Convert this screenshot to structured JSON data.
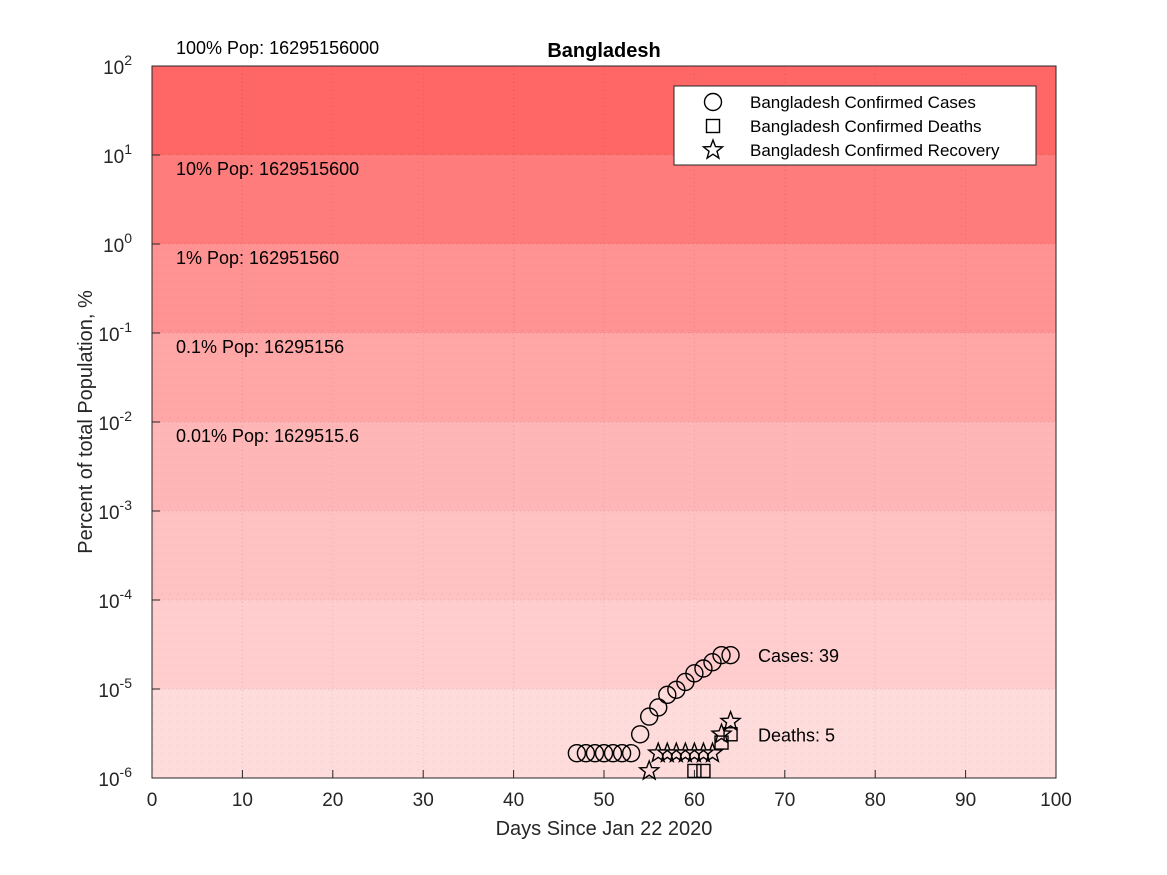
{
  "chart_data": {
    "type": "scatter",
    "title": "Bangladesh",
    "xlabel": "Days Since Jan 22 2020",
    "ylabel": "Percent of total Population, %",
    "xlim": [
      0,
      100
    ],
    "ylim": [
      1e-06,
      100
    ],
    "yscale": "log",
    "x_ticks": [
      0,
      10,
      20,
      30,
      40,
      50,
      60,
      70,
      80,
      90,
      100
    ],
    "x_tick_labels": [
      "0",
      "10",
      "20",
      "30",
      "40",
      "50",
      "60",
      "70",
      "80",
      "90",
      "100"
    ],
    "y_ticks": [
      {
        "value": 1e-06,
        "base": "10",
        "exp": "-6"
      },
      {
        "value": 1e-05,
        "base": "10",
        "exp": "-5"
      },
      {
        "value": 0.0001,
        "base": "10",
        "exp": "-4"
      },
      {
        "value": 0.001,
        "base": "10",
        "exp": "-3"
      },
      {
        "value": 0.01,
        "base": "10",
        "exp": "-2"
      },
      {
        "value": 0.1,
        "base": "10",
        "exp": "-1"
      },
      {
        "value": 1,
        "base": "10",
        "exp": "0"
      },
      {
        "value": 10,
        "base": "10",
        "exp": "1"
      },
      {
        "value": 100,
        "base": "10",
        "exp": "2"
      }
    ],
    "grid": true,
    "legend_position": "top-right",
    "bands": [
      {
        "low": 10,
        "high": 100,
        "color": "#ff6767",
        "label": "100% Pop: 16295156000"
      },
      {
        "low": 1,
        "high": 10,
        "color": "#ff7c7c",
        "label": "10% Pop: 1629515600"
      },
      {
        "low": 0.1,
        "high": 1,
        "color": "#ff9292",
        "label": "1% Pop: 162951560"
      },
      {
        "low": 0.01,
        "high": 0.1,
        "color": "#ffa6a6",
        "label": "0.1% Pop: 16295156"
      },
      {
        "low": 0.001,
        "high": 0.01,
        "color": "#ffb6b6",
        "label": "0.01% Pop: 1629515.6"
      },
      {
        "low": 0.0001,
        "high": 0.001,
        "color": "#ffc2c2",
        "label": ""
      },
      {
        "low": 1e-05,
        "high": 0.0001,
        "color": "#ffcdcd",
        "label": ""
      },
      {
        "low": 1e-06,
        "high": 1e-05,
        "color": "#ffdcdc",
        "label": ""
      }
    ],
    "series": [
      {
        "name": "Bangladesh Confirmed Cases",
        "marker": "circle",
        "x": [
          47,
          48,
          49,
          50,
          51,
          52,
          53,
          54,
          55,
          56,
          57,
          58,
          59,
          60,
          61,
          62,
          63,
          64
        ],
        "y": [
          1.9e-06,
          1.9e-06,
          1.9e-06,
          1.9e-06,
          1.9e-06,
          1.9e-06,
          1.9e-06,
          3.1e-06,
          4.9e-06,
          6.2e-06,
          8.6e-06,
          9.8e-06,
          1.2e-05,
          1.5e-05,
          1.7e-05,
          2e-05,
          2.4e-05,
          2.4e-05
        ]
      },
      {
        "name": "Bangladesh Confirmed Deaths",
        "marker": "square",
        "x": [
          60,
          61,
          63,
          64
        ],
        "y": [
          1.2e-06,
          1.2e-06,
          2.5e-06,
          3.1e-06
        ]
      },
      {
        "name": "Bangladesh Confirmed Recovery",
        "marker": "star",
        "x": [
          55,
          56,
          57,
          58,
          59,
          60,
          61,
          62,
          63,
          64
        ],
        "y": [
          1.2e-06,
          1.9e-06,
          1.9e-06,
          1.9e-06,
          1.9e-06,
          1.9e-06,
          1.9e-06,
          1.9e-06,
          3.1e-06,
          4.3e-06
        ]
      }
    ],
    "annotations": [
      {
        "text": "Cases: 39",
        "x": 67,
        "y": 2.4e-05
      },
      {
        "text": "Deaths: 5",
        "x": 67,
        "y": 3.1e-06
      }
    ]
  }
}
